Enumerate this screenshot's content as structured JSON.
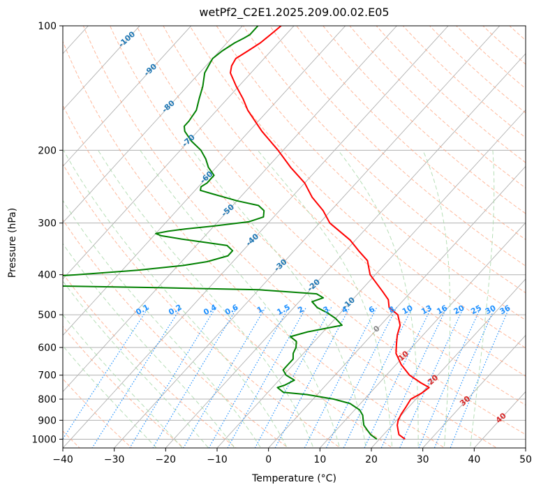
{
  "chart_data": {
    "type": "skew-t",
    "title": "wetPf2_C2E1.2025.209.00.02.E05",
    "xlabel": "Temperature (°C)",
    "ylabel": "Pressure (hPa)",
    "xlim": [
      -40,
      50
    ],
    "ylim": [
      1050,
      100
    ],
    "yscale": "log",
    "grid": true,
    "x_ticks": [
      -40,
      -30,
      -20,
      -10,
      0,
      10,
      20,
      30,
      40,
      50
    ],
    "y_ticks": [
      100,
      200,
      300,
      400,
      500,
      600,
      700,
      800,
      900,
      1000
    ],
    "colors": {
      "temperature": "#ff0000",
      "dewpoint": "#008000",
      "isotherm": "#b0b0b0",
      "dry_adiabat": "#ffa07a",
      "moist_adiabat": "#a9d8a9",
      "mixing_ratio": "#1e90ff",
      "freezing_level": "#d2b48c",
      "label_cold": "#1f77b4",
      "label_warm": "#d62728"
    },
    "isotherm_labels": [
      {
        "t": -100,
        "p": 108
      },
      {
        "t": -90,
        "p": 128
      },
      {
        "t": -80,
        "p": 157
      },
      {
        "t": -70,
        "p": 190
      },
      {
        "t": -60,
        "p": 233
      },
      {
        "t": -50,
        "p": 280
      },
      {
        "t": -40,
        "p": 330
      },
      {
        "t": -30,
        "p": 380
      },
      {
        "t": -20,
        "p": 425
      },
      {
        "t": -10,
        "p": 470
      },
      {
        "t": 0,
        "p": 542
      },
      {
        "t": 10,
        "p": 630
      },
      {
        "t": 20,
        "p": 720
      },
      {
        "t": 30,
        "p": 810
      },
      {
        "t": 40,
        "p": 890
      }
    ],
    "mixing_ratio_labels": [
      0.1,
      0.2,
      0.4,
      0.6,
      1,
      1.5,
      2,
      3,
      4,
      6,
      8,
      10,
      13,
      16,
      20,
      25,
      30,
      36
    ],
    "mixing_ratio_label_pressure": 500,
    "series": [
      {
        "name": "Temperature",
        "points": [
          [
            1000,
            25.0
          ],
          [
            975,
            23.0
          ],
          [
            950,
            22.0
          ],
          [
            925,
            21.0
          ],
          [
            900,
            20.3
          ],
          [
            870,
            19.8
          ],
          [
            840,
            19.5
          ],
          [
            800,
            19.0
          ],
          [
            775,
            20.0
          ],
          [
            750,
            20.5
          ],
          [
            730,
            18.0
          ],
          [
            700,
            14.5
          ],
          [
            660,
            11.0
          ],
          [
            620,
            8.0
          ],
          [
            590,
            6.5
          ],
          [
            560,
            5.0
          ],
          [
            530,
            3.8
          ],
          [
            500,
            1.5
          ],
          [
            480,
            -1.5
          ],
          [
            460,
            -3.0
          ],
          [
            440,
            -5.5
          ],
          [
            400,
            -11.0
          ],
          [
            370,
            -14.0
          ],
          [
            350,
            -17.5
          ],
          [
            330,
            -21.0
          ],
          [
            300,
            -28.0
          ],
          [
            280,
            -31.5
          ],
          [
            260,
            -36.0
          ],
          [
            240,
            -40.0
          ],
          [
            220,
            -45.5
          ],
          [
            200,
            -51.0
          ],
          [
            180,
            -57.5
          ],
          [
            160,
            -64.0
          ],
          [
            150,
            -67.0
          ],
          [
            140,
            -70.5
          ],
          [
            130,
            -74.0
          ],
          [
            125,
            -75.0
          ],
          [
            120,
            -75.5
          ],
          [
            115,
            -74.5
          ],
          [
            110,
            -73.5
          ],
          [
            105,
            -73.0
          ],
          [
            100,
            -72.5
          ]
        ]
      },
      {
        "name": "Dewpoint",
        "points": [
          [
            1000,
            19.5
          ],
          [
            975,
            17.5
          ],
          [
            950,
            16.0
          ],
          [
            925,
            14.5
          ],
          [
            900,
            13.5
          ],
          [
            875,
            12.5
          ],
          [
            850,
            11.0
          ],
          [
            820,
            8.0
          ],
          [
            800,
            4.0
          ],
          [
            780,
            -2.0
          ],
          [
            770,
            -7.0
          ],
          [
            750,
            -9.0
          ],
          [
            740,
            -8.0
          ],
          [
            720,
            -7.0
          ],
          [
            700,
            -9.5
          ],
          [
            680,
            -11.0
          ],
          [
            660,
            -11.0
          ],
          [
            640,
            -11.0
          ],
          [
            620,
            -12.0
          ],
          [
            600,
            -12.5
          ],
          [
            580,
            -13.5
          ],
          [
            565,
            -15.5
          ],
          [
            550,
            -13.0
          ],
          [
            530,
            -7.5
          ],
          [
            510,
            -10.0
          ],
          [
            495,
            -12.5
          ],
          [
            480,
            -15.5
          ],
          [
            465,
            -17.5
          ],
          [
            455,
            -16.0
          ],
          [
            445,
            -18.0
          ],
          [
            435,
            -30.0
          ],
          [
            430,
            -50.0
          ],
          [
            425,
            -75.0
          ],
          [
            420,
            -90.0
          ],
          [
            410,
            -80.0
          ],
          [
            400,
            -68.0
          ],
          [
            390,
            -57.0
          ],
          [
            380,
            -49.0
          ],
          [
            372,
            -45.0
          ],
          [
            360,
            -42.0
          ],
          [
            350,
            -42.0
          ],
          [
            340,
            -44.0
          ],
          [
            335,
            -48.0
          ],
          [
            328,
            -54.0
          ],
          [
            322,
            -58.5
          ],
          [
            318,
            -60.0
          ],
          [
            314,
            -58.0
          ],
          [
            310,
            -55.0
          ],
          [
            305,
            -50.0
          ],
          [
            298,
            -44.0
          ],
          [
            290,
            -42.0
          ],
          [
            280,
            -43.0
          ],
          [
            272,
            -45.0
          ],
          [
            265,
            -50.0
          ],
          [
            260,
            -53.0
          ],
          [
            255,
            -56.0
          ],
          [
            250,
            -59.0
          ],
          [
            245,
            -59.5
          ],
          [
            240,
            -59.0
          ],
          [
            235,
            -59.0
          ],
          [
            230,
            -59.0
          ],
          [
            220,
            -61.5
          ],
          [
            210,
            -63.5
          ],
          [
            200,
            -66.0
          ],
          [
            190,
            -69.5
          ],
          [
            180,
            -72.5
          ],
          [
            175,
            -73.5
          ],
          [
            170,
            -73.5
          ],
          [
            160,
            -74.0
          ],
          [
            150,
            -75.5
          ],
          [
            140,
            -77.0
          ],
          [
            130,
            -79.0
          ],
          [
            125,
            -79.5
          ],
          [
            120,
            -80.0
          ],
          [
            115,
            -79.5
          ],
          [
            110,
            -78.5
          ],
          [
            107,
            -77.5
          ],
          [
            105,
            -77.0
          ],
          [
            100,
            -77.0
          ]
        ]
      }
    ]
  }
}
